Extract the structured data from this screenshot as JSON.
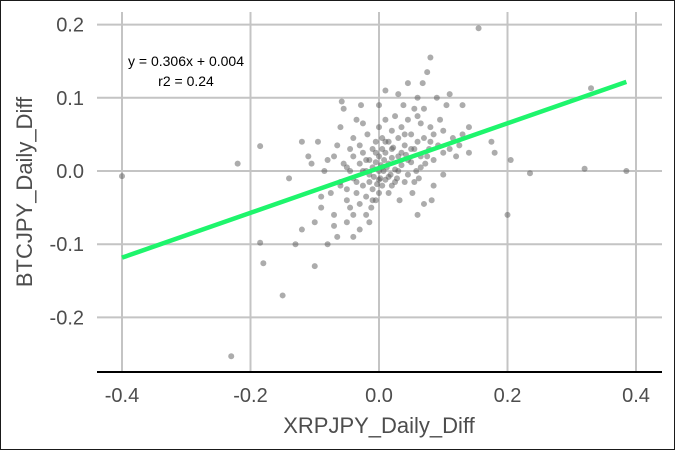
{
  "chart_data": {
    "type": "scatter",
    "title": "",
    "xlabel": "XRPJPY_Daily_Diff",
    "ylabel": "BTCJPY_Daily_Diff",
    "xlim": [
      -0.44,
      0.44
    ],
    "ylim": [
      -0.27,
      0.215
    ],
    "x_ticks": [
      -0.4,
      -0.2,
      0.0,
      0.2,
      0.4
    ],
    "x_tick_labels": [
      "-0.4",
      "-0.2",
      "0.0",
      "0.2",
      "0.4"
    ],
    "y_ticks": [
      0.2,
      0.1,
      0.0,
      -0.1,
      -0.2
    ],
    "y_tick_labels": [
      "0.2",
      "0.1",
      "0.0",
      "-0.1",
      "-0.2"
    ],
    "grid": true,
    "legend": "none",
    "point_color": "#595959",
    "point_alpha": 0.5,
    "regression": {
      "equation": "y = 0.306x + 0.004",
      "r2_label": "r2 = 0.24",
      "slope": 0.306,
      "intercept": 0.004,
      "x_range": [
        -0.4,
        0.385
      ],
      "color": "#1ef56c"
    },
    "points": [
      [
        -0.4,
        -0.007
      ],
      [
        -0.23,
        -0.253
      ],
      [
        -0.22,
        0.01
      ],
      [
        -0.185,
        0.034
      ],
      [
        -0.185,
        -0.098
      ],
      [
        -0.18,
        -0.126
      ],
      [
        -0.15,
        -0.17
      ],
      [
        -0.14,
        -0.01
      ],
      [
        -0.12,
        -0.08
      ],
      [
        -0.1,
        -0.13
      ],
      [
        -0.095,
        0.04
      ],
      [
        -0.09,
        -0.05
      ],
      [
        -0.085,
        0.0
      ],
      [
        -0.08,
        0.015
      ],
      [
        -0.08,
        -0.1
      ],
      [
        -0.075,
        -0.03
      ],
      [
        -0.07,
        -0.06
      ],
      [
        -0.07,
        0.02
      ],
      [
        -0.065,
        -0.09
      ],
      [
        -0.06,
        0.06
      ],
      [
        -0.06,
        -0.02
      ],
      [
        -0.058,
        0.095
      ],
      [
        -0.055,
        0.085
      ],
      [
        -0.05,
        -0.04
      ],
      [
        -0.05,
        0.005
      ],
      [
        -0.05,
        -0.07
      ],
      [
        -0.045,
        0.03
      ],
      [
        -0.045,
        -0.05
      ],
      [
        -0.04,
        -0.01
      ],
      [
        -0.04,
        -0.06
      ],
      [
        -0.04,
        0.045
      ],
      [
        -0.035,
        0.07
      ],
      [
        -0.035,
        -0.03
      ],
      [
        -0.03,
        -0.08
      ],
      [
        -0.03,
        0.01
      ],
      [
        -0.03,
        -0.045
      ],
      [
        -0.028,
        0.09
      ],
      [
        -0.025,
        -0.02
      ],
      [
        -0.025,
        0.025
      ],
      [
        -0.02,
        -0.06
      ],
      [
        -0.02,
        0.0
      ],
      [
        -0.02,
        -0.035
      ],
      [
        -0.018,
        0.05
      ],
      [
        -0.015,
        -0.015
      ],
      [
        -0.015,
        0.015
      ],
      [
        -0.012,
        -0.05
      ],
      [
        -0.01,
        0.03
      ],
      [
        -0.01,
        -0.025
      ],
      [
        -0.01,
        0.005
      ],
      [
        -0.008,
        -0.008
      ],
      [
        -0.005,
        0.04
      ],
      [
        -0.005,
        -0.04
      ],
      [
        -0.005,
        0.012
      ],
      [
        -0.003,
        -0.018
      ],
      [
        0.0,
        0.0
      ],
      [
        0.0,
        0.02
      ],
      [
        0.0,
        -0.03
      ],
      [
        0.0,
        0.06
      ],
      [
        0.002,
        -0.01
      ],
      [
        0.003,
        0.008
      ],
      [
        0.005,
        0.03
      ],
      [
        0.005,
        -0.02
      ],
      [
        0.005,
        0.045
      ],
      [
        0.007,
        0.0
      ],
      [
        0.008,
        0.015
      ],
      [
        0.01,
        -0.012
      ],
      [
        0.01,
        0.07
      ],
      [
        0.01,
        0.025
      ],
      [
        0.012,
        0.005
      ],
      [
        0.015,
        -0.03
      ],
      [
        0.015,
        0.04
      ],
      [
        0.015,
        0.01
      ],
      [
        0.018,
        -0.005
      ],
      [
        0.02,
        0.055
      ],
      [
        0.02,
        0.018
      ],
      [
        0.02,
        -0.02
      ],
      [
        0.022,
        0.032
      ],
      [
        0.025,
        0.002
      ],
      [
        0.025,
        0.075
      ],
      [
        0.028,
        -0.01
      ],
      [
        0.03,
        0.045
      ],
      [
        0.03,
        0.02
      ],
      [
        0.032,
        -0.04
      ],
      [
        0.035,
        0.06
      ],
      [
        0.035,
        0.008
      ],
      [
        0.038,
        0.09
      ],
      [
        0.04,
        -0.015
      ],
      [
        0.04,
        0.035
      ],
      [
        0.042,
        0.022
      ],
      [
        0.045,
        0.07
      ],
      [
        0.045,
        -0.005
      ],
      [
        0.05,
        0.05
      ],
      [
        0.05,
        0.012
      ],
      [
        0.052,
        -0.03
      ],
      [
        0.055,
        0.03
      ],
      [
        0.055,
        0.085
      ],
      [
        0.058,
        0.0
      ],
      [
        0.06,
        0.04
      ],
      [
        0.06,
        0.1
      ],
      [
        0.062,
        -0.01
      ],
      [
        0.065,
        0.02
      ],
      [
        0.065,
        0.065
      ],
      [
        0.068,
        0.12
      ],
      [
        0.07,
        0.045
      ],
      [
        0.07,
        -0.045
      ],
      [
        0.072,
        0.01
      ],
      [
        0.075,
        0.135
      ],
      [
        0.078,
        0.03
      ],
      [
        0.08,
        0.06
      ],
      [
        0.08,
        0.155
      ],
      [
        0.082,
        -0.04
      ],
      [
        0.085,
        0.05
      ],
      [
        0.085,
        0.015
      ],
      [
        0.09,
        0.1
      ],
      [
        0.092,
        0.035
      ],
      [
        0.095,
        0.07
      ],
      [
        0.1,
        0.025
      ],
      [
        0.1,
        0.055
      ],
      [
        0.105,
        0.09
      ],
      [
        0.11,
        0.03
      ],
      [
        0.115,
        0.045
      ],
      [
        0.12,
        0.02
      ],
      [
        0.125,
        0.035
      ],
      [
        0.13,
        0.05
      ],
      [
        0.14,
        0.025
      ],
      [
        0.155,
        0.195
      ],
      [
        0.175,
        0.04
      ],
      [
        0.18,
        0.025
      ],
      [
        0.2,
        -0.06
      ],
      [
        0.205,
        0.015
      ],
      [
        0.235,
        -0.003
      ],
      [
        0.32,
        0.003
      ],
      [
        0.33,
        0.113
      ],
      [
        0.385,
        0.0
      ],
      [
        -0.06,
        -0.015
      ],
      [
        -0.055,
        0.01
      ],
      [
        -0.05,
        -0.025
      ],
      [
        -0.045,
        0.0
      ],
      [
        -0.04,
        0.02
      ],
      [
        -0.035,
        -0.015
      ],
      [
        -0.03,
        0.035
      ],
      [
        -0.025,
        0.0
      ],
      [
        -0.02,
        0.015
      ],
      [
        -0.015,
        -0.005
      ],
      [
        -0.01,
        -0.04
      ],
      [
        -0.005,
        0.025
      ],
      [
        0.0,
        -0.012
      ],
      [
        0.005,
        0.005
      ],
      [
        0.01,
        0.04
      ],
      [
        0.015,
        -0.008
      ],
      [
        0.02,
        0.03
      ],
      [
        0.025,
        -0.015
      ],
      [
        0.03,
        0.0
      ],
      [
        0.035,
        0.025
      ],
      [
        0.04,
        0.05
      ],
      [
        0.045,
        0.015
      ],
      [
        0.05,
        0.03
      ],
      [
        0.055,
        -0.015
      ],
      [
        0.06,
        0.075
      ],
      [
        0.065,
        0.005
      ],
      [
        0.07,
        0.085
      ],
      [
        0.075,
        0.02
      ],
      [
        0.08,
        0.04
      ],
      [
        0.085,
        -0.02
      ],
      [
        -0.09,
        -0.035
      ],
      [
        -0.07,
        -0.075
      ],
      [
        -0.065,
        0.035
      ],
      [
        -0.04,
        -0.09
      ],
      [
        -0.025,
        0.065
      ],
      [
        -0.015,
        -0.07
      ],
      [
        0.0,
        0.09
      ],
      [
        0.01,
        0.11
      ],
      [
        0.03,
        0.105
      ],
      [
        0.045,
        0.12
      ],
      [
        0.06,
        -0.06
      ],
      [
        0.11,
        0.105
      ],
      [
        0.1,
        -0.005
      ],
      [
        0.13,
        0.09
      ],
      [
        0.14,
        0.06
      ],
      [
        -0.12,
        0.04
      ],
      [
        -0.11,
        0.02
      ],
      [
        -0.1,
        -0.07
      ],
      [
        -0.105,
        0.01
      ],
      [
        -0.13,
        -0.1
      ]
    ]
  }
}
